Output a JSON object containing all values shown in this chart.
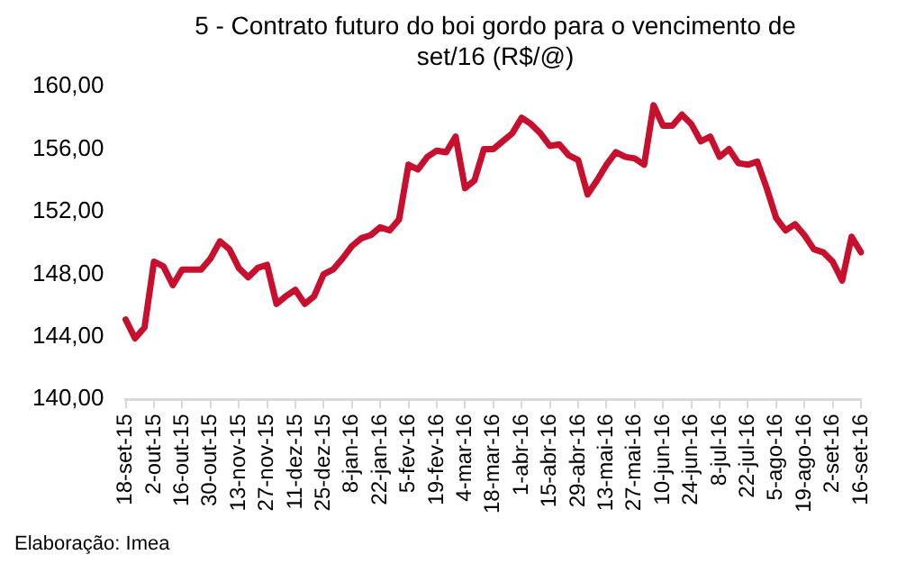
{
  "chart_data": {
    "type": "line",
    "title": "5 - Contrato futuro do boi gordo para o vencimento de set/16 (R$/@)",
    "annotations": [
      "Elaboração: Imea"
    ],
    "categories": [
      "18-set-15",
      null,
      null,
      "2-out-15",
      null,
      null,
      "16-out-15",
      null,
      null,
      "30-out-15",
      null,
      null,
      "13-nov-15",
      null,
      null,
      "27-nov-15",
      null,
      null,
      "11-dez-15",
      null,
      null,
      "25-dez-15",
      null,
      null,
      "8-jan-16",
      null,
      null,
      "22-jan-16",
      null,
      null,
      "5-fev-16",
      null,
      null,
      "19-fev-16",
      null,
      null,
      "4-mar-16",
      null,
      null,
      "18-mar-16",
      null,
      null,
      "1-abr-16",
      null,
      null,
      "15-abr-16",
      null,
      null,
      "29-abr-16",
      null,
      null,
      "13-mai-16",
      null,
      null,
      "27-mai-16",
      null,
      null,
      "10-jun-16",
      null,
      null,
      "24-jun-16",
      null,
      null,
      "8-jul-16",
      null,
      null,
      "22-jul-16",
      null,
      null,
      "5-ago-16",
      null,
      null,
      "19-ago-16",
      null,
      null,
      "2-set-16",
      null,
      null,
      "16-set-16"
    ],
    "series": [
      {
        "color": "#c8102e",
        "values": [
          145.1,
          143.9,
          144.6,
          148.8,
          148.5,
          147.3,
          148.3,
          148.3,
          148.3,
          149.0,
          150.1,
          149.6,
          148.4,
          147.8,
          148.4,
          148.6,
          146.1,
          146.6,
          147.0,
          146.1,
          146.6,
          148.0,
          148.3,
          149.0,
          149.8,
          150.3,
          150.5,
          151.0,
          150.8,
          151.5,
          155.0,
          154.7,
          155.5,
          155.9,
          155.8,
          156.8,
          153.5,
          154.0,
          156.0,
          156.0,
          156.5,
          157.0,
          158.0,
          157.6,
          157.0,
          156.2,
          156.3,
          155.6,
          155.3,
          153.1,
          154.0,
          155.0,
          155.8,
          155.5,
          155.4,
          155.0,
          158.8,
          157.5,
          157.5,
          158.2,
          157.6,
          156.5,
          156.8,
          155.5,
          156.0,
          155.1,
          155.0,
          155.2,
          153.5,
          151.6,
          150.8,
          151.2,
          150.5,
          149.6,
          149.4,
          148.8,
          147.6,
          150.4,
          149.4
        ]
      }
    ],
    "ylim": [
      140,
      160
    ],
    "yticks": [
      {
        "value": 140,
        "label": "140,00"
      },
      {
        "value": 144,
        "label": "144,00"
      },
      {
        "value": 148,
        "label": "148,00"
      },
      {
        "value": 152,
        "label": "152,00"
      },
      {
        "value": 156,
        "label": "156,00"
      },
      {
        "value": 160,
        "label": "160,00"
      }
    ],
    "grid": false,
    "legend": false,
    "marker": "none",
    "line_style": "solid"
  }
}
